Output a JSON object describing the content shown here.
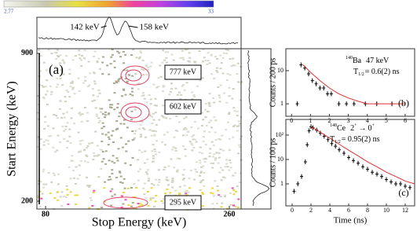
{
  "colorbar": {
    "min_label": "2.77",
    "max_label": "33"
  },
  "chart_data": [
    {
      "type": "heatmap",
      "panel_label": "(a)",
      "xlabel": "Stop Energy (keV)",
      "ylabel": "Start Energy (keV)",
      "xlim": [
        71.5,
        271.5
      ],
      "xticks": [
        80,
        260
      ],
      "ylim": [
        163,
        922
      ],
      "yticks": [
        200,
        900
      ],
      "gates": [
        "777 keV",
        "602 keV",
        "295 keV"
      ],
      "peaks": [
        {
          "label": "142 keV",
          "value": 142
        },
        {
          "label": "158 keV",
          "value": 158
        }
      ]
    },
    {
      "type": "decay",
      "panel_label": "(b)",
      "ylabel": "Counts / 200 ps",
      "log_y": true,
      "mass": "140",
      "nucleus": "Ba",
      "transition": "47 keV",
      "half_life_symbol": "T",
      "half_life_sub": "1/2",
      "half_life": "= 0.6(2) ns",
      "xlim": [
        -0.3,
        6.5
      ],
      "xticks": [
        0,
        1,
        2,
        3,
        4,
        5,
        6
      ],
      "ylim": [
        0.42,
        46
      ],
      "yticks": [
        1,
        10
      ],
      "x": [
        0.3,
        0.5,
        0.7,
        0.9,
        1.1,
        1.3,
        1.5,
        1.7,
        1.9,
        2.1,
        2.5,
        2.9,
        3.3,
        3.9,
        4.5,
        5.3
      ],
      "values": [
        1,
        15,
        12,
        8,
        5,
        4,
        3,
        3,
        2,
        2,
        1,
        1,
        1,
        1,
        1,
        1
      ],
      "fit": {
        "color": "#e03030",
        "x": [
          0.6,
          1,
          1.5,
          2,
          2.5,
          3,
          3.5,
          4,
          5,
          6
        ],
        "values": [
          15,
          9,
          5,
          3,
          2,
          1.5,
          1.2,
          1,
          1,
          1
        ]
      }
    },
    {
      "type": "decay",
      "panel_label": "(c)",
      "ylabel": "Counts / 100 ps",
      "xlabel": "Time (ns)",
      "log_y": true,
      "mass": "148",
      "nucleus": "Ce",
      "transition": "2",
      "spin_i": "+",
      "arrow": "→",
      "final": "0",
      "spin_f": "+",
      "half_life_symbol": "T",
      "half_life_sub": "1/2",
      "half_life": "= 0.95(2) ns",
      "xlim": [
        -0.67,
        13
      ],
      "xticks": [
        0,
        2,
        4,
        6,
        8,
        10,
        12
      ],
      "ylim": [
        0.125,
        440
      ],
      "yticks": [
        1,
        10,
        {
          "value": 100,
          "label": "10²"
        }
      ],
      "x": [
        0.2,
        0.6,
        1.0,
        1.4,
        1.6,
        1.8,
        2.0,
        2.2,
        2.6,
        3.0,
        3.4,
        3.8,
        4.2,
        4.6,
        5.0,
        5.5,
        6.0,
        6.5,
        7.0,
        7.5,
        8.0,
        8.5,
        9.0,
        9.5,
        10.0,
        10.5,
        11.0,
        11.5,
        12.0,
        12.5
      ],
      "values": [
        0.5,
        1,
        2,
        8,
        40,
        150,
        220,
        200,
        160,
        120,
        90,
        65,
        45,
        35,
        25,
        18,
        12,
        9,
        7,
        5,
        4,
        3,
        2.5,
        2,
        1.5,
        1.2,
        1,
        1,
        0.8,
        0.7
      ],
      "fit": {
        "color": "#e03030",
        "x": [
          2,
          3,
          4,
          5,
          6,
          7,
          8,
          9,
          10,
          11,
          12,
          13
        ],
        "values": [
          220,
          130,
          75,
          42,
          24,
          14,
          8,
          5,
          3,
          2,
          1.3,
          1
        ]
      }
    }
  ]
}
